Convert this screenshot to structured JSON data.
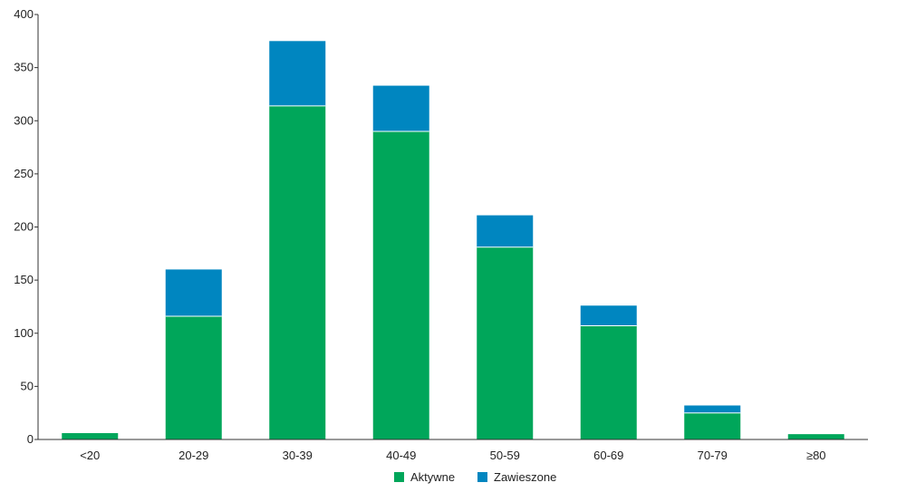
{
  "chart_data": {
    "type": "bar",
    "stacked": true,
    "categories": [
      "<20",
      "20-29",
      "30-39",
      "40-49",
      "50-59",
      "60-69",
      "70-79",
      "≥80"
    ],
    "series": [
      {
        "name": "Aktywne",
        "color": "#00a65a",
        "values": [
          6,
          116,
          314,
          290,
          181,
          107,
          25,
          5
        ]
      },
      {
        "name": "Zawieszone",
        "color": "#0086c0",
        "values": [
          0,
          44,
          61,
          43,
          30,
          19,
          7,
          0
        ]
      }
    ],
    "ylim": [
      0,
      400
    ],
    "yticks": [
      0,
      50,
      100,
      150,
      200,
      250,
      300,
      350,
      400
    ],
    "grid": false,
    "legend_position": "bottom-center"
  }
}
